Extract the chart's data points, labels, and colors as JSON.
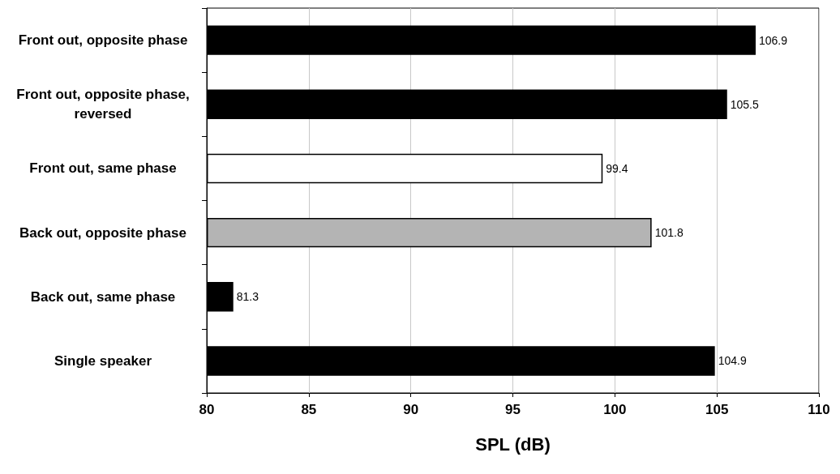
{
  "chart_data": {
    "type": "bar",
    "orientation": "horizontal",
    "categories": [
      "Front out, opposite phase",
      "Front out, opposite phase,reversed",
      "Front out, same phase",
      "Back out, opposite phase",
      "Back out, same phase",
      "Single speaker"
    ],
    "values": [
      106.9,
      105.5,
      99.4,
      101.8,
      81.3,
      104.9
    ],
    "colors": [
      "#000000",
      "#000000",
      "#ffffff",
      "#b4b4b4",
      "#000000",
      "#000000"
    ],
    "xlim": [
      80,
      110
    ],
    "xticks": [
      80,
      85,
      90,
      95,
      100,
      105,
      110
    ],
    "xlabel": "SPL (dB)",
    "grid": "x",
    "data_labels": true
  }
}
